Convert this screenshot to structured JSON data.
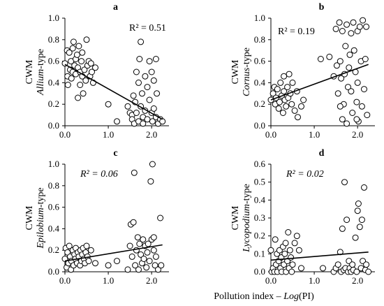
{
  "figure": {
    "xlabel_prefix": "Pollution index – ",
    "xlabel_func": "Log",
    "xlabel_suffix": "(PI)"
  },
  "chart_data": [
    {
      "type": "scatter",
      "panel_label": "a",
      "ylabel_top": "CWM",
      "ylabel_italic": "Allium",
      "ylabel_rest": "-type",
      "r2_label": "R² = 0.51",
      "r2_italic": false,
      "xlim": [
        0,
        2.4
      ],
      "ylim": [
        0,
        1.0
      ],
      "xticks": [
        "0.0",
        "1.0",
        "2.0"
      ],
      "yticks": [
        "0.0",
        "0.2",
        "0.4",
        "0.6",
        "0.8",
        "1.0"
      ],
      "trend": {
        "x": [
          0.0,
          2.25
        ],
        "y": [
          0.57,
          0.06
        ]
      },
      "points": [
        [
          0.0,
          0.58
        ],
        [
          0.05,
          0.7
        ],
        [
          0.06,
          0.46
        ],
        [
          0.07,
          0.38
        ],
        [
          0.1,
          0.68
        ],
        [
          0.12,
          0.52
        ],
        [
          0.14,
          0.6
        ],
        [
          0.15,
          0.44
        ],
        [
          0.18,
          0.72
        ],
        [
          0.18,
          0.5
        ],
        [
          0.2,
          0.78
        ],
        [
          0.22,
          0.56
        ],
        [
          0.25,
          0.62
        ],
        [
          0.25,
          0.48
        ],
        [
          0.28,
          0.66
        ],
        [
          0.3,
          0.54
        ],
        [
          0.3,
          0.26
        ],
        [
          0.32,
          0.74
        ],
        [
          0.35,
          0.5
        ],
        [
          0.35,
          0.38
        ],
        [
          0.38,
          0.6
        ],
        [
          0.4,
          0.46
        ],
        [
          0.4,
          0.68
        ],
        [
          0.42,
          0.3
        ],
        [
          0.45,
          0.52
        ],
        [
          0.48,
          0.42
        ],
        [
          0.5,
          0.8
        ],
        [
          0.52,
          0.56
        ],
        [
          0.55,
          0.6
        ],
        [
          0.58,
          0.46
        ],
        [
          0.6,
          0.58
        ],
        [
          0.62,
          0.5
        ],
        [
          0.65,
          0.4
        ],
        [
          0.7,
          0.54
        ],
        [
          1.2,
          0.04
        ],
        [
          1.45,
          0.18
        ],
        [
          1.5,
          0.12
        ],
        [
          1.55,
          0.1
        ],
        [
          1.55,
          0.06
        ],
        [
          1.58,
          0.28
        ],
        [
          1.6,
          0.02
        ],
        [
          1.62,
          0.22
        ],
        [
          1.65,
          0.5
        ],
        [
          1.65,
          0.12
        ],
        [
          1.7,
          0.4
        ],
        [
          1.7,
          0.04
        ],
        [
          1.72,
          0.62
        ],
        [
          1.75,
          0.78
        ],
        [
          1.75,
          0.18
        ],
        [
          1.78,
          0.3
        ],
        [
          1.8,
          0.08
        ],
        [
          1.8,
          0.02
        ],
        [
          1.85,
          0.46
        ],
        [
          1.85,
          0.14
        ],
        [
          1.9,
          0.36
        ],
        [
          1.9,
          0.06
        ],
        [
          1.95,
          0.6
        ],
        [
          1.95,
          0.24
        ],
        [
          2.0,
          0.5
        ],
        [
          2.0,
          0.12
        ],
        [
          2.02,
          0.04
        ],
        [
          2.05,
          0.42
        ],
        [
          2.05,
          0.16
        ],
        [
          2.1,
          0.62
        ],
        [
          2.1,
          0.08
        ],
        [
          2.12,
          0.3
        ],
        [
          2.15,
          0.02
        ],
        [
          2.2,
          0.06
        ],
        [
          2.25,
          0.04
        ],
        [
          1.0,
          0.2
        ]
      ]
    },
    {
      "type": "scatter",
      "panel_label": "b",
      "ylabel_top": "CWM",
      "ylabel_italic": "Cornus",
      "ylabel_rest": "-type",
      "r2_label": "R² = 0.19",
      "r2_italic": false,
      "xlim": [
        0,
        2.4
      ],
      "ylim": [
        0,
        1.0
      ],
      "xticks": [
        "0.0",
        "1.0",
        "2.0"
      ],
      "yticks": [
        "0.0",
        "0.2",
        "0.4",
        "0.6",
        "0.8",
        "1.0"
      ],
      "trend": {
        "x": [
          0.0,
          2.25
        ],
        "y": [
          0.24,
          0.57
        ]
      },
      "points": [
        [
          0.0,
          0.24
        ],
        [
          0.05,
          0.3
        ],
        [
          0.08,
          0.36
        ],
        [
          0.1,
          0.2
        ],
        [
          0.12,
          0.26
        ],
        [
          0.15,
          0.34
        ],
        [
          0.18,
          0.16
        ],
        [
          0.2,
          0.22
        ],
        [
          0.22,
          0.4
        ],
        [
          0.25,
          0.28
        ],
        [
          0.28,
          0.12
        ],
        [
          0.3,
          0.32
        ],
        [
          0.3,
          0.46
        ],
        [
          0.32,
          0.24
        ],
        [
          0.35,
          0.18
        ],
        [
          0.38,
          0.36
        ],
        [
          0.4,
          0.26
        ],
        [
          0.42,
          0.48
        ],
        [
          0.45,
          0.3
        ],
        [
          0.48,
          0.2
        ],
        [
          0.5,
          0.4
        ],
        [
          0.55,
          0.14
        ],
        [
          0.6,
          0.32
        ],
        [
          0.62,
          0.08
        ],
        [
          0.7,
          0.18
        ],
        [
          0.75,
          0.24
        ],
        [
          1.15,
          0.62
        ],
        [
          1.35,
          0.64
        ],
        [
          1.45,
          0.46
        ],
        [
          1.5,
          0.9
        ],
        [
          1.52,
          0.56
        ],
        [
          1.55,
          0.3
        ],
        [
          1.58,
          0.96
        ],
        [
          1.6,
          0.6
        ],
        [
          1.62,
          0.44
        ],
        [
          1.65,
          0.06
        ],
        [
          1.65,
          0.88
        ],
        [
          1.68,
          0.2
        ],
        [
          1.7,
          0.48
        ],
        [
          1.72,
          0.74
        ],
        [
          1.75,
          0.02
        ],
        [
          1.75,
          0.94
        ],
        [
          1.78,
          0.36
        ],
        [
          1.8,
          0.54
        ],
        [
          1.82,
          0.66
        ],
        [
          1.85,
          0.86
        ],
        [
          1.85,
          0.32
        ],
        [
          1.88,
          0.12
        ],
        [
          1.9,
          0.96
        ],
        [
          1.92,
          0.7
        ],
        [
          1.95,
          0.5
        ],
        [
          1.98,
          0.22
        ],
        [
          2.0,
          0.88
        ],
        [
          2.0,
          0.4
        ],
        [
          2.02,
          0.04
        ],
        [
          2.05,
          0.92
        ],
        [
          2.08,
          0.6
        ],
        [
          2.1,
          0.18
        ],
        [
          2.12,
          0.98
        ],
        [
          2.15,
          0.34
        ],
        [
          2.18,
          0.62
        ],
        [
          2.2,
          0.92
        ],
        [
          2.22,
          0.1
        ],
        [
          1.6,
          0.18
        ],
        [
          1.98,
          0.06
        ]
      ]
    },
    {
      "type": "scatter",
      "panel_label": "c",
      "ylabel_top": "CWM",
      "ylabel_italic": "Epilobium",
      "ylabel_rest": "-type",
      "r2_label": "R² = 0.06",
      "r2_italic": true,
      "xlim": [
        0,
        2.4
      ],
      "ylim": [
        0,
        1.0
      ],
      "xticks": [
        "0.0",
        "1.0",
        "2.0"
      ],
      "yticks": [
        "0.0",
        "0.2",
        "0.4",
        "0.6",
        "0.8",
        "1.0"
      ],
      "trend": {
        "x": [
          0.0,
          2.25
        ],
        "y": [
          0.1,
          0.25
        ]
      },
      "points": [
        [
          0.0,
          0.12
        ],
        [
          0.02,
          0.22
        ],
        [
          0.04,
          0.04
        ],
        [
          0.06,
          0.18
        ],
        [
          0.08,
          0.08
        ],
        [
          0.1,
          0.24
        ],
        [
          0.12,
          0.14
        ],
        [
          0.14,
          0.02
        ],
        [
          0.15,
          0.1
        ],
        [
          0.18,
          0.2
        ],
        [
          0.2,
          0.06
        ],
        [
          0.22,
          0.16
        ],
        [
          0.24,
          0.12
        ],
        [
          0.25,
          0.22
        ],
        [
          0.28,
          0.08
        ],
        [
          0.3,
          0.18
        ],
        [
          0.32,
          0.14
        ],
        [
          0.35,
          0.06
        ],
        [
          0.36,
          0.2
        ],
        [
          0.38,
          0.1
        ],
        [
          0.4,
          0.16
        ],
        [
          0.42,
          0.22
        ],
        [
          0.44,
          0.12
        ],
        [
          0.46,
          0.08
        ],
        [
          0.48,
          0.18
        ],
        [
          0.5,
          0.24
        ],
        [
          0.52,
          0.14
        ],
        [
          0.55,
          0.1
        ],
        [
          0.6,
          0.2
        ],
        [
          0.7,
          0.08
        ],
        [
          1.0,
          0.06
        ],
        [
          1.2,
          0.1
        ],
        [
          1.45,
          0.02
        ],
        [
          1.5,
          0.24
        ],
        [
          1.52,
          0.44
        ],
        [
          1.55,
          0.14
        ],
        [
          1.58,
          0.46
        ],
        [
          1.6,
          0.92
        ],
        [
          1.62,
          0.06
        ],
        [
          1.65,
          0.2
        ],
        [
          1.68,
          0.32
        ],
        [
          1.7,
          0.02
        ],
        [
          1.72,
          0.26
        ],
        [
          1.75,
          0.16
        ],
        [
          1.78,
          0.08
        ],
        [
          1.8,
          0.3
        ],
        [
          1.82,
          0.12
        ],
        [
          1.85,
          0.24
        ],
        [
          1.88,
          0.04
        ],
        [
          1.9,
          0.18
        ],
        [
          1.92,
          0.26
        ],
        [
          1.95,
          0.1
        ],
        [
          1.98,
          0.84
        ],
        [
          2.0,
          0.3
        ],
        [
          2.02,
          1.0
        ],
        [
          2.05,
          0.2
        ],
        [
          2.08,
          0.06
        ],
        [
          2.1,
          0.14
        ],
        [
          2.15,
          0.02
        ],
        [
          2.2,
          0.5
        ],
        [
          2.22,
          0.06
        ],
        [
          2.05,
          0.32
        ]
      ]
    },
    {
      "type": "scatter",
      "panel_label": "d",
      "ylabel_top": "CWM",
      "ylabel_italic": "Lycopodium",
      "ylabel_rest": "-type",
      "r2_label": "R² = 0.02",
      "r2_italic": true,
      "xlim": [
        0,
        2.4
      ],
      "ylim": [
        0,
        0.6
      ],
      "xticks": [
        "0.0",
        "1.0",
        "2.0"
      ],
      "yticks": [
        "0.0",
        "0.1",
        "0.2",
        "0.3",
        "0.4",
        "0.5",
        "0.6"
      ],
      "trend": {
        "x": [
          0.0,
          2.25
        ],
        "y": [
          0.065,
          0.11
        ]
      },
      "points": [
        [
          0.0,
          0.12
        ],
        [
          0.02,
          0.0
        ],
        [
          0.05,
          0.02
        ],
        [
          0.08,
          0.0
        ],
        [
          0.1,
          0.18
        ],
        [
          0.12,
          0.04
        ],
        [
          0.14,
          0.1
        ],
        [
          0.15,
          0.0
        ],
        [
          0.18,
          0.06
        ],
        [
          0.2,
          0.12
        ],
        [
          0.22,
          0.02
        ],
        [
          0.24,
          0.08
        ],
        [
          0.25,
          0.0
        ],
        [
          0.28,
          0.14
        ],
        [
          0.3,
          0.04
        ],
        [
          0.32,
          0.1
        ],
        [
          0.34,
          0.16
        ],
        [
          0.35,
          0.0
        ],
        [
          0.38,
          0.06
        ],
        [
          0.4,
          0.22
        ],
        [
          0.42,
          0.02
        ],
        [
          0.44,
          0.12
        ],
        [
          0.46,
          0.08
        ],
        [
          0.48,
          0.0
        ],
        [
          0.5,
          0.04
        ],
        [
          0.55,
          0.16
        ],
        [
          0.6,
          0.2
        ],
        [
          0.65,
          0.12
        ],
        [
          0.7,
          0.02
        ],
        [
          1.2,
          0.02
        ],
        [
          1.45,
          0.0
        ],
        [
          1.5,
          0.02
        ],
        [
          1.55,
          0.04
        ],
        [
          1.6,
          0.11
        ],
        [
          1.62,
          0.0
        ],
        [
          1.65,
          0.24
        ],
        [
          1.68,
          0.01
        ],
        [
          1.7,
          0.5
        ],
        [
          1.72,
          0.02
        ],
        [
          1.75,
          0.29
        ],
        [
          1.78,
          0.0
        ],
        [
          1.8,
          0.06
        ],
        [
          1.82,
          0.02
        ],
        [
          1.85,
          0.0
        ],
        [
          1.88,
          0.04
        ],
        [
          1.9,
          0.01
        ],
        [
          1.95,
          0.19
        ],
        [
          1.98,
          0.0
        ],
        [
          2.0,
          0.34
        ],
        [
          2.02,
          0.38
        ],
        [
          2.05,
          0.25
        ],
        [
          2.08,
          0.02
        ],
        [
          2.1,
          0.29
        ],
        [
          2.12,
          0.06
        ],
        [
          2.15,
          0.47
        ],
        [
          2.18,
          0.01
        ],
        [
          2.2,
          0.04
        ],
        [
          2.25,
          0.0
        ]
      ]
    }
  ]
}
